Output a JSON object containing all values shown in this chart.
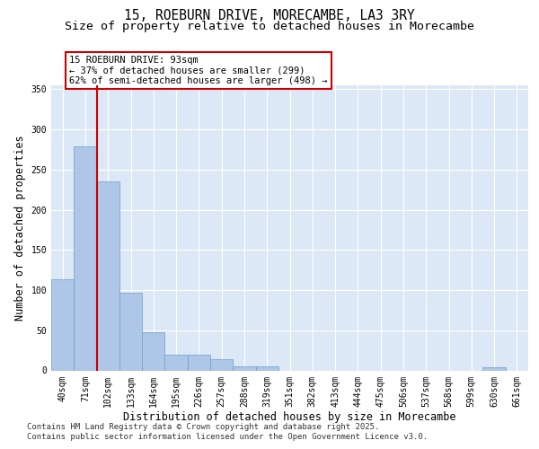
{
  "title_line1": "15, ROEBURN DRIVE, MORECAMBE, LA3 3RY",
  "title_line2": "Size of property relative to detached houses in Morecambe",
  "xlabel": "Distribution of detached houses by size in Morecambe",
  "ylabel": "Number of detached properties",
  "categories": [
    "40sqm",
    "71sqm",
    "102sqm",
    "133sqm",
    "164sqm",
    "195sqm",
    "226sqm",
    "257sqm",
    "288sqm",
    "319sqm",
    "351sqm",
    "382sqm",
    "413sqm",
    "444sqm",
    "475sqm",
    "506sqm",
    "537sqm",
    "568sqm",
    "599sqm",
    "630sqm",
    "661sqm"
  ],
  "values": [
    113,
    279,
    235,
    97,
    48,
    20,
    20,
    14,
    5,
    5,
    0,
    0,
    0,
    0,
    0,
    0,
    0,
    0,
    0,
    4,
    0
  ],
  "bar_color": "#aec6e8",
  "bar_edge_color": "#6b9fc8",
  "background_color": "#dce8f5",
  "grid_color": "#ffffff",
  "vline_x": 1.5,
  "vline_color": "#cc0000",
  "annotation_text": "15 ROEBURN DRIVE: 93sqm\n← 37% of detached houses are smaller (299)\n62% of semi-detached houses are larger (498) →",
  "annotation_box_color": "#cc0000",
  "ylim": [
    0,
    355
  ],
  "yticks": [
    0,
    50,
    100,
    150,
    200,
    250,
    300,
    350
  ],
  "footer_line1": "Contains HM Land Registry data © Crown copyright and database right 2025.",
  "footer_line2": "Contains public sector information licensed under the Open Government Licence v3.0.",
  "title_fontsize": 10.5,
  "subtitle_fontsize": 9.5,
  "axis_label_fontsize": 8.5,
  "tick_fontsize": 7,
  "annotation_fontsize": 7.5,
  "footer_fontsize": 6.5
}
